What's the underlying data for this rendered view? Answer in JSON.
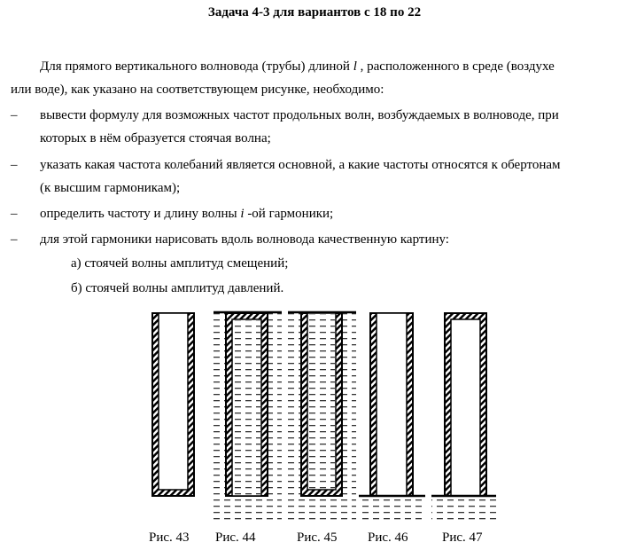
{
  "title": "Задача 4-3 для вариантов с 18 по 22",
  "intro": {
    "line1": "Для прямого вертикального волновода (трубы) длиной",
    "var_l": "l",
    "line1b": ", расположенного в среде (воздухе",
    "line2": "или воде), как указано на соответствующем рисунке, необходимо:"
  },
  "bullets": {
    "marker": "–",
    "b1a": "вывести формулу для возможных частот продольных волн, возбуждаемых в волноводе, при",
    "b1b": "которых в нём образуется стоячая волна;",
    "b2a": "указать какая частота колебаний является основной, а какие частоты относятся к обертонам",
    "b2b": "(к высшим гармоникам);",
    "b3a": "определить частоту и длину волны",
    "b3var": "i",
    "b3b": "-ой гармоники;",
    "b4": "для этой гармоники нарисовать вдоль волновода качественную картину:"
  },
  "sub": {
    "a": "а) стоячей волны амплитуд смещений;",
    "b": "б) стоячей волны амплитуд давлений."
  },
  "figures": [
    "Рис. 43",
    "Рис. 44",
    "Рис. 45",
    "Рис. 46",
    "Рис. 47"
  ]
}
